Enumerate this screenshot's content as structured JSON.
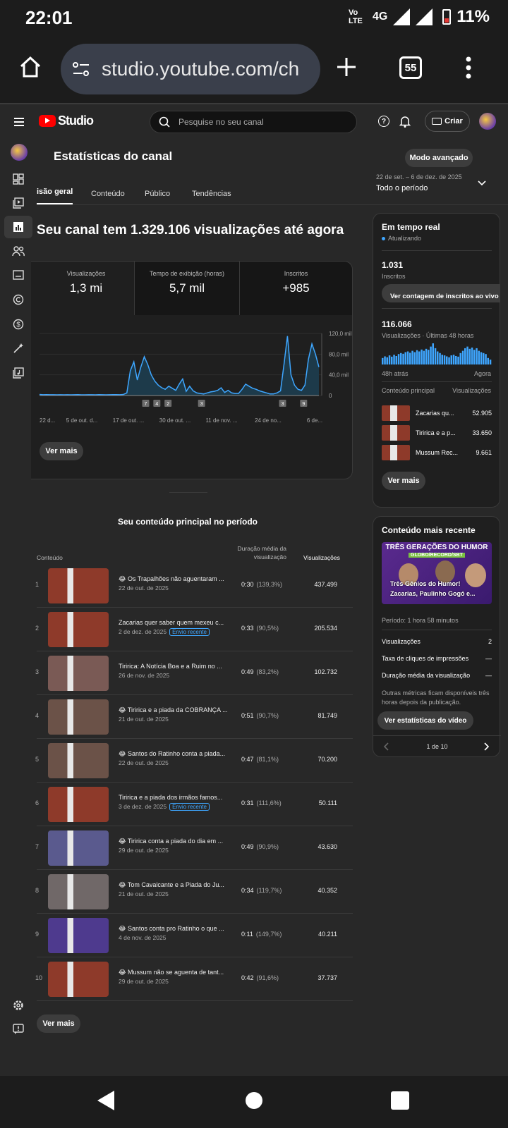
{
  "status_bar": {
    "time": "22:01",
    "volte": "Vo LTE",
    "network": "4G",
    "battery": "11%"
  },
  "browser": {
    "url": "studio.youtube.com/ch",
    "tabs_count": "55"
  },
  "header": {
    "logo_text": "Studio",
    "search_placeholder": "Pesquise no seu canal",
    "create_label": "Criar"
  },
  "page": {
    "title": "Estatísticas do canal",
    "advanced_mode": "Modo avançado",
    "date_range": "22 de set. – 6 de dez. de 2025",
    "period": "Todo o período",
    "tabs": [
      "isão geral",
      "Conteúdo",
      "Público",
      "Tendências"
    ],
    "headline": "Seu canal tem 1.329.106 visualizações até agora"
  },
  "metrics": [
    {
      "label": "Visualizações",
      "value": "1,3 mi"
    },
    {
      "label": "Tempo de exibição (horas)",
      "value": "5,7 mil"
    },
    {
      "label": "Inscritos",
      "value": "+985"
    }
  ],
  "chart_data": {
    "type": "area",
    "x_ticks": [
      "22 d...",
      "5 de out. d...",
      "17 de out. ...",
      "30 de out. ...",
      "11 de nov. ...",
      "24 de no...",
      "6 de..."
    ],
    "y_ticks": [
      "120,0 mil",
      "80,0 mil",
      "40,0 mil",
      "0"
    ],
    "ylim": [
      0,
      120000
    ],
    "values": [
      2000,
      1500,
      1800,
      1500,
      1500,
      1400,
      1500,
      1300,
      1500,
      1400,
      1500,
      1600,
      1400,
      1300,
      1500,
      1500,
      1400,
      1600,
      1500,
      1400,
      1500,
      1700,
      1600,
      1500,
      2000,
      5000,
      48000,
      65000,
      30000,
      55000,
      75000,
      60000,
      40000,
      28000,
      20000,
      15000,
      12000,
      18000,
      14000,
      10000,
      22000,
      32000,
      8000,
      18000,
      9000,
      5000,
      4000,
      3000,
      5000,
      7000,
      8000,
      10000,
      15000,
      6000,
      10000,
      5000,
      4000,
      4000,
      12000,
      22000,
      18000,
      14000,
      12000,
      9000,
      7000,
      5000,
      3000,
      3000,
      5000,
      9000,
      60000,
      115000,
      40000,
      20000,
      12000,
      10000,
      20000,
      70000,
      100000,
      80000,
      55000
    ],
    "markers": [
      "7",
      "4",
      "2",
      "3",
      "3",
      "9"
    ]
  },
  "see_more": "Ver mais",
  "top_content": {
    "heading": "Seu conteúdo principal no período",
    "col_content": "Conteúdo",
    "col_duration": "Duração média da visualização",
    "col_views": "Visualizações",
    "rows": [
      {
        "idx": "1",
        "title": "😂 Os Trapalhões não aguentaram ...",
        "date": "22 de out. de 2025",
        "badge": "",
        "duration": "0:30",
        "pct": "(139,3%)",
        "views": "437.499",
        "color": "#8e3a2a"
      },
      {
        "idx": "2",
        "title": "Zacarias quer saber quem mexeu c...",
        "date": "2 de dez. de 2025",
        "badge": "Envio recente",
        "duration": "0:33",
        "pct": "(90,5%)",
        "views": "205.534",
        "color": "#8e3a2a"
      },
      {
        "idx": "3",
        "title": "Tiririca: A Notícia Boa e a Ruim no ...",
        "date": "26 de nov. de 2025",
        "badge": "",
        "duration": "0:49",
        "pct": "(83,2%)",
        "views": "102.732",
        "color": "#7a5a55"
      },
      {
        "idx": "4",
        "title": "😂 Tiririca e a piada da COBRANÇA ...",
        "date": "21 de out. de 2025",
        "badge": "",
        "duration": "0:51",
        "pct": "(90,7%)",
        "views": "81.749",
        "color": "#6b5248"
      },
      {
        "idx": "5",
        "title": "😂 Santos do Ratinho conta a piada...",
        "date": "22 de out. de 2025",
        "badge": "",
        "duration": "0:47",
        "pct": "(81,1%)",
        "views": "70.200",
        "color": "#6b5248"
      },
      {
        "idx": "6",
        "title": "Tiririca e a piada dos irmãos famos...",
        "date": "3 de dez. de 2025",
        "badge": "Envio recente",
        "duration": "0:31",
        "pct": "(111,6%)",
        "views": "50.111",
        "color": "#8e3a2a"
      },
      {
        "idx": "7",
        "title": "😂 Tiririca conta a piada do dia em ...",
        "date": "29 de out. de 2025",
        "badge": "",
        "duration": "0:49",
        "pct": "(90,9%)",
        "views": "43.630",
        "color": "#5a5a8e"
      },
      {
        "idx": "8",
        "title": "😂 Tom Cavalcante e a Piada do Ju...",
        "date": "21 de out. de 2025",
        "badge": "",
        "duration": "0:34",
        "pct": "(119,7%)",
        "views": "40.352",
        "color": "#706868"
      },
      {
        "idx": "9",
        "title": "😂 Santos conta pro Ratinho o que ...",
        "date": "4 de nov. de 2025",
        "badge": "",
        "duration": "0:11",
        "pct": "(149,7%)",
        "views": "40.211",
        "color": "#4e3a8e"
      },
      {
        "idx": "10",
        "title": "😂 Mussum não se aguenta de tant...",
        "date": "29 de out. de 2025",
        "badge": "",
        "duration": "0:42",
        "pct": "(91,6%)",
        "views": "37.737",
        "color": "#8e3a2a"
      }
    ]
  },
  "realtime": {
    "title": "Em tempo real",
    "status": "Atualizando",
    "subs_value": "1.031",
    "subs_label": "Inscritos",
    "subs_button": "Ver contagem de inscritos ao vivo",
    "views_value": "116.066",
    "views_label": "Visualizações · Últimas 48 horas",
    "left_label": "48h atrás",
    "right_label": "Agora",
    "col_content": "Conteúdo principal",
    "col_views": "Visualizações",
    "bars": [
      20,
      25,
      22,
      28,
      24,
      30,
      26,
      32,
      35,
      33,
      38,
      40,
      36,
      42,
      38,
      44,
      40,
      46,
      42,
      48,
      45,
      55,
      65,
      50,
      40,
      35,
      30,
      28,
      25,
      22,
      28,
      30,
      26,
      24,
      35,
      42,
      50,
      55,
      48,
      52,
      45,
      50,
      42,
      38,
      35,
      32,
      20,
      15
    ],
    "items": [
      {
        "title": "Zacarias qu...",
        "views": "52.905"
      },
      {
        "title": "Tiririca e a p...",
        "views": "33.650"
      },
      {
        "title": "Mussum Rec...",
        "views": "9.661"
      }
    ],
    "see_more": "Ver mais"
  },
  "latest": {
    "title": "Conteúdo mais recente",
    "thumb_title": "TRÊS GERAÇÕES DO HUMOR",
    "thumb_sub": "GLOBO/RECORD/SBT",
    "thumb_caption1": "Três Gênios do Humor!",
    "thumb_caption2": "Zacarias, Paulinho Gogó e...",
    "period": "Período: 1 hora 58 minutos",
    "stats": [
      {
        "label": "Visualizações",
        "value": "2"
      },
      {
        "label": "Taxa de cliques de impressões",
        "value": "—"
      },
      {
        "label": "Duração média da visualização",
        "value": "—"
      }
    ],
    "note": "Outras métricas ficam disponíveis três horas depois da publicação.",
    "button": "Ver estatísticas do vídeo",
    "pager": "1 de 10"
  }
}
